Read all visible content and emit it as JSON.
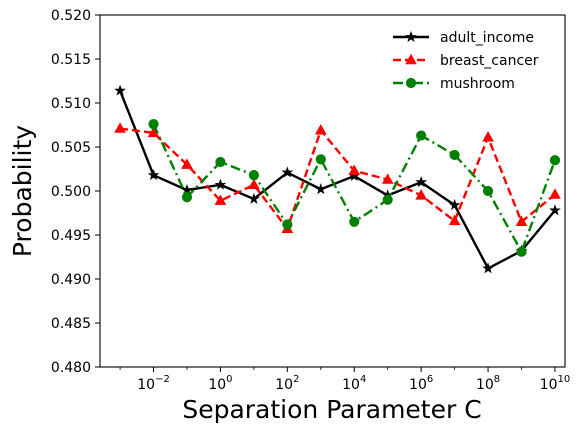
{
  "chart_data": {
    "type": "line",
    "title": "",
    "xlabel": "Separation Parameter C",
    "ylabel": "Probability",
    "xscale": "log",
    "x": [
      0.001,
      0.01,
      0.1,
      1,
      10,
      100,
      1000,
      10000,
      100000,
      1000000,
      10000000,
      100000000,
      1000000000,
      10000000000
    ],
    "xlim_exp": [
      -3.6,
      10.3
    ],
    "xticks": [
      {
        "exp": -2,
        "base": "10",
        "sup": "−2"
      },
      {
        "exp": 0,
        "base": "10",
        "sup": "0"
      },
      {
        "exp": 2,
        "base": "10",
        "sup": "2"
      },
      {
        "exp": 4,
        "base": "10",
        "sup": "4"
      },
      {
        "exp": 6,
        "base": "10",
        "sup": "6"
      },
      {
        "exp": 8,
        "base": "10",
        "sup": "8"
      },
      {
        "exp": 10,
        "base": "10",
        "sup": "10"
      }
    ],
    "ylim": [
      0.48,
      0.52
    ],
    "yticks": [
      0.48,
      0.485,
      0.49,
      0.495,
      0.5,
      0.505,
      0.51,
      0.515,
      0.52
    ],
    "ytick_labels": [
      "0.480",
      "0.485",
      "0.490",
      "0.495",
      "0.500",
      "0.505",
      "0.510",
      "0.515",
      "0.520"
    ],
    "grid": false,
    "legend_position": "top-right",
    "series": [
      {
        "name": "adult_income",
        "color": "#000000",
        "linestyle": "solid",
        "marker": "star",
        "values": [
          0.5114,
          0.5018,
          0.5001,
          0.5007,
          0.4991,
          0.5021,
          0.5002,
          0.5017,
          0.4995,
          0.501,
          0.4984,
          0.4912,
          0.4932,
          0.4978
        ]
      },
      {
        "name": "breast_cancer",
        "color": "#ff0000",
        "linestyle": "dashed",
        "marker": "triangle",
        "values": [
          0.5071,
          0.5066,
          0.503,
          0.4989,
          0.5007,
          0.4957,
          0.5069,
          0.5023,
          0.5013,
          0.4995,
          0.4966,
          0.5061,
          0.4965,
          0.4996
        ]
      },
      {
        "name": "mushroom",
        "color": "#008000",
        "linestyle": "dashdot",
        "marker": "circle",
        "values": [
          null,
          0.5076,
          0.4993,
          0.5033,
          0.5018,
          0.4962,
          0.5036,
          0.4965,
          0.499,
          0.5063,
          0.5041,
          0.5,
          0.4931,
          0.5035
        ]
      }
    ]
  }
}
